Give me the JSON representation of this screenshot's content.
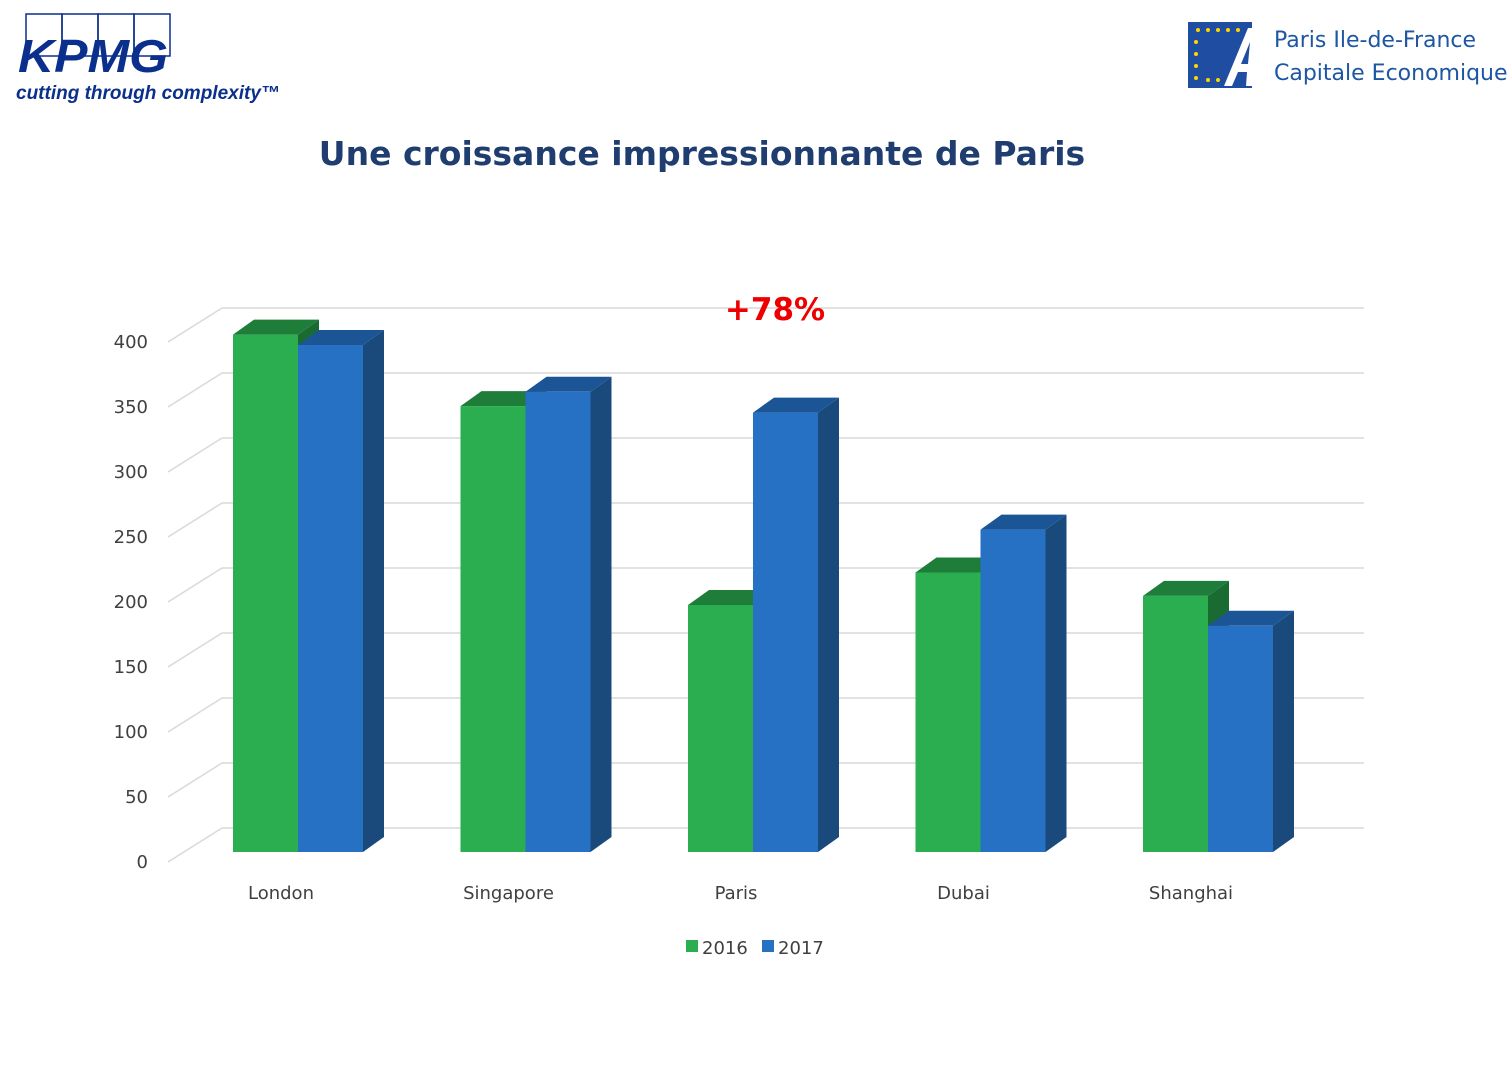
{
  "header": {
    "kpmg_logo_text": "KPMG",
    "kpmg_tagline": "cutting through complexity™",
    "partner_logo_line1": "Paris Ile-de-France",
    "partner_logo_line2": "Capitale Economique"
  },
  "page_title": "Une croissance impressionnante de Paris",
  "chart_data": {
    "type": "bar",
    "variant": "3d-clustered-column",
    "title": "Une croissance impressionnante de Paris",
    "categories": [
      "London",
      "Singapore",
      "Paris",
      "Dubai",
      "Shanghai"
    ],
    "series": [
      {
        "name": "2016",
        "color": "#2aae4f",
        "top_color": "#1f7d3a",
        "side_color": "#1a6b32",
        "values": [
          398,
          343,
          190,
          215,
          197
        ]
      },
      {
        "name": "2017",
        "color": "#2671c4",
        "top_color": "#1b5596",
        "side_color": "#1a4a7c",
        "values": [
          390,
          354,
          338,
          248,
          174
        ]
      }
    ],
    "xlabel": "",
    "ylabel": "",
    "ylim": [
      0,
      400
    ],
    "yticks": [
      0,
      50,
      100,
      150,
      200,
      250,
      300,
      350,
      400
    ],
    "grid": true,
    "legend_position": "bottom",
    "annotations": [
      {
        "text": "+78%",
        "category": "Paris",
        "color": "#ee0000"
      }
    ]
  }
}
